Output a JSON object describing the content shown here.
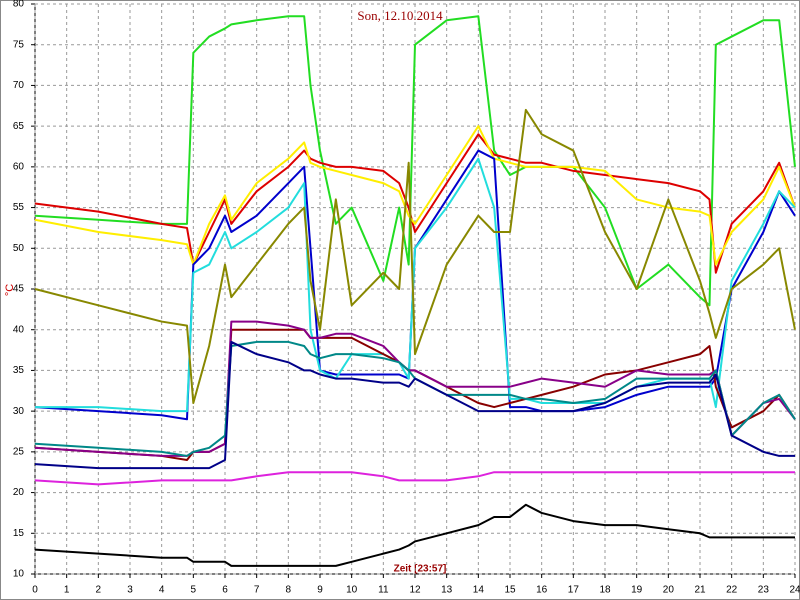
{
  "chart_data": {
    "type": "line",
    "title": "Son, 12.10.2014",
    "ylabel": "°C",
    "xlabel": "Zeit [23:57]",
    "x": [
      0,
      2,
      4,
      4.8,
      5,
      5.5,
      6,
      6.2,
      7,
      8,
      8.5,
      8.7,
      9,
      9.5,
      10,
      11,
      11.5,
      11.8,
      12,
      13,
      14,
      14.5,
      15,
      15.5,
      16,
      17,
      18,
      19,
      20,
      21,
      21.3,
      21.5,
      22,
      23,
      23.5,
      24
    ],
    "series": [
      {
        "color": "#22dd22",
        "values": [
          54,
          53.5,
          53,
          53,
          74,
          76,
          77,
          77.5,
          78,
          78.5,
          78.5,
          70,
          62,
          53,
          55,
          46,
          55,
          48,
          75,
          78,
          78.5,
          62,
          59,
          60,
          60,
          60,
          55,
          45,
          48,
          44,
          43,
          75,
          76,
          78,
          78,
          60
        ]
      },
      {
        "color": "#dd0000",
        "values": [
          55.5,
          54.5,
          53,
          52.5,
          48,
          52,
          56,
          53,
          57,
          60,
          62,
          61,
          60.5,
          60,
          60,
          59.5,
          58,
          55,
          52,
          58,
          64,
          61.5,
          61,
          60.5,
          60.5,
          59.5,
          59,
          58.5,
          58,
          57,
          56,
          47,
          53,
          57,
          60.5,
          55
        ]
      },
      {
        "color": "#ffee00",
        "values": [
          53.5,
          52,
          51,
          50.5,
          48,
          53,
          56.5,
          53.5,
          58,
          61,
          63,
          60.5,
          60,
          59.5,
          59,
          58,
          57,
          54,
          53,
          59,
          65,
          61,
          60.5,
          60,
          60,
          60,
          59.5,
          56,
          55,
          54.5,
          54,
          48,
          52,
          56,
          60,
          55
        ]
      },
      {
        "color": "#0000cc",
        "values": [
          30.5,
          30,
          29.5,
          29,
          48,
          50,
          54,
          52,
          54,
          58,
          60,
          50,
          35,
          34.5,
          34.5,
          34.5,
          34.5,
          34,
          50,
          56,
          62,
          61,
          30.5,
          30.5,
          30,
          30,
          30.5,
          32,
          33,
          33,
          33,
          34,
          45,
          52,
          57,
          54
        ]
      },
      {
        "color": "#22dddd",
        "values": [
          30.5,
          30.5,
          30,
          30,
          47,
          48,
          52,
          50,
          52,
          55,
          58,
          40,
          35,
          34,
          37,
          37,
          36,
          34,
          50,
          55,
          61,
          55,
          31.5,
          31.5,
          31,
          31,
          31,
          33,
          34,
          34,
          34,
          30.5,
          46,
          53,
          57,
          55
        ]
      },
      {
        "color": "#888800",
        "values": [
          45,
          43,
          41,
          40.5,
          31,
          38,
          48,
          44,
          48,
          53,
          55,
          46,
          40,
          56,
          43,
          47,
          45,
          60.5,
          37,
          48,
          54,
          52,
          52,
          67,
          64,
          62,
          52,
          45,
          56,
          46,
          42,
          39,
          45,
          48,
          50,
          40
        ]
      },
      {
        "color": "#880000",
        "values": [
          25.5,
          25,
          24.5,
          24,
          25,
          25,
          26,
          40,
          40,
          40,
          40,
          39,
          39,
          39,
          39,
          37,
          36,
          35,
          35,
          33,
          31,
          30.5,
          31,
          31.5,
          32,
          33,
          34.5,
          35,
          36,
          37,
          38,
          33,
          28,
          30,
          32,
          29
        ]
      },
      {
        "color": "#880088",
        "values": [
          25.5,
          25,
          24.5,
          24.5,
          25,
          25,
          26,
          41,
          41,
          40.5,
          40,
          39,
          39,
          39.5,
          39.5,
          38,
          36,
          35,
          35,
          33,
          33,
          33,
          33,
          33.5,
          34,
          33.5,
          33,
          35,
          34.5,
          34.5,
          34.5,
          35,
          27,
          31,
          31.5,
          29
        ]
      },
      {
        "color": "#008888",
        "values": [
          26,
          25.5,
          25,
          24.5,
          25,
          25.5,
          27,
          38,
          38.5,
          38.5,
          38,
          37,
          36.5,
          37,
          37,
          36.5,
          36,
          35,
          34,
          32,
          32,
          32,
          32,
          31.5,
          31.5,
          31,
          31.5,
          34,
          34,
          34,
          34,
          35,
          27,
          31,
          32,
          29
        ]
      },
      {
        "color": "#000088",
        "values": [
          23.5,
          23,
          23,
          23,
          23,
          23,
          24,
          38.5,
          37,
          36,
          35,
          35,
          34.5,
          34,
          34,
          33.5,
          33.5,
          33,
          34,
          32,
          30,
          30,
          30,
          30,
          30,
          30,
          31,
          33,
          33.5,
          33.5,
          33.5,
          34.5,
          27,
          25,
          24.5,
          24.5
        ]
      },
      {
        "color": "#dd22dd",
        "values": [
          21.5,
          21,
          21.5,
          21.5,
          21.5,
          21.5,
          21.5,
          21.5,
          22,
          22.5,
          22.5,
          22.5,
          22.5,
          22.5,
          22.5,
          22,
          21.5,
          21.5,
          21.5,
          21.5,
          22,
          22.5,
          22.5,
          22.5,
          22.5,
          22.5,
          22.5,
          22.5,
          22.5,
          22.5,
          22.5,
          22.5,
          22.5,
          22.5,
          22.5,
          22.5
        ]
      },
      {
        "color": "#000000",
        "values": [
          13,
          12.5,
          12,
          12,
          11.5,
          11.5,
          11.5,
          11,
          11,
          11,
          11,
          11,
          11,
          11,
          11.5,
          12.5,
          13,
          13.5,
          14,
          15,
          16,
          17,
          17,
          18.5,
          17.5,
          16.5,
          16,
          16,
          15.5,
          15,
          14.5,
          14.5,
          14.5,
          14.5,
          14.5,
          14.5
        ]
      }
    ],
    "xlim": [
      0,
      24
    ],
    "xticks": [
      0,
      1,
      2,
      3,
      4,
      5,
      6,
      7,
      8,
      9,
      10,
      11,
      12,
      13,
      14,
      15,
      16,
      17,
      18,
      19,
      20,
      21,
      22,
      23,
      24
    ],
    "ylim": [
      10,
      80
    ],
    "yticks": [
      10,
      15,
      20,
      25,
      30,
      35,
      40,
      45,
      50,
      55,
      60,
      65,
      70,
      75,
      80
    ],
    "grid": true
  }
}
